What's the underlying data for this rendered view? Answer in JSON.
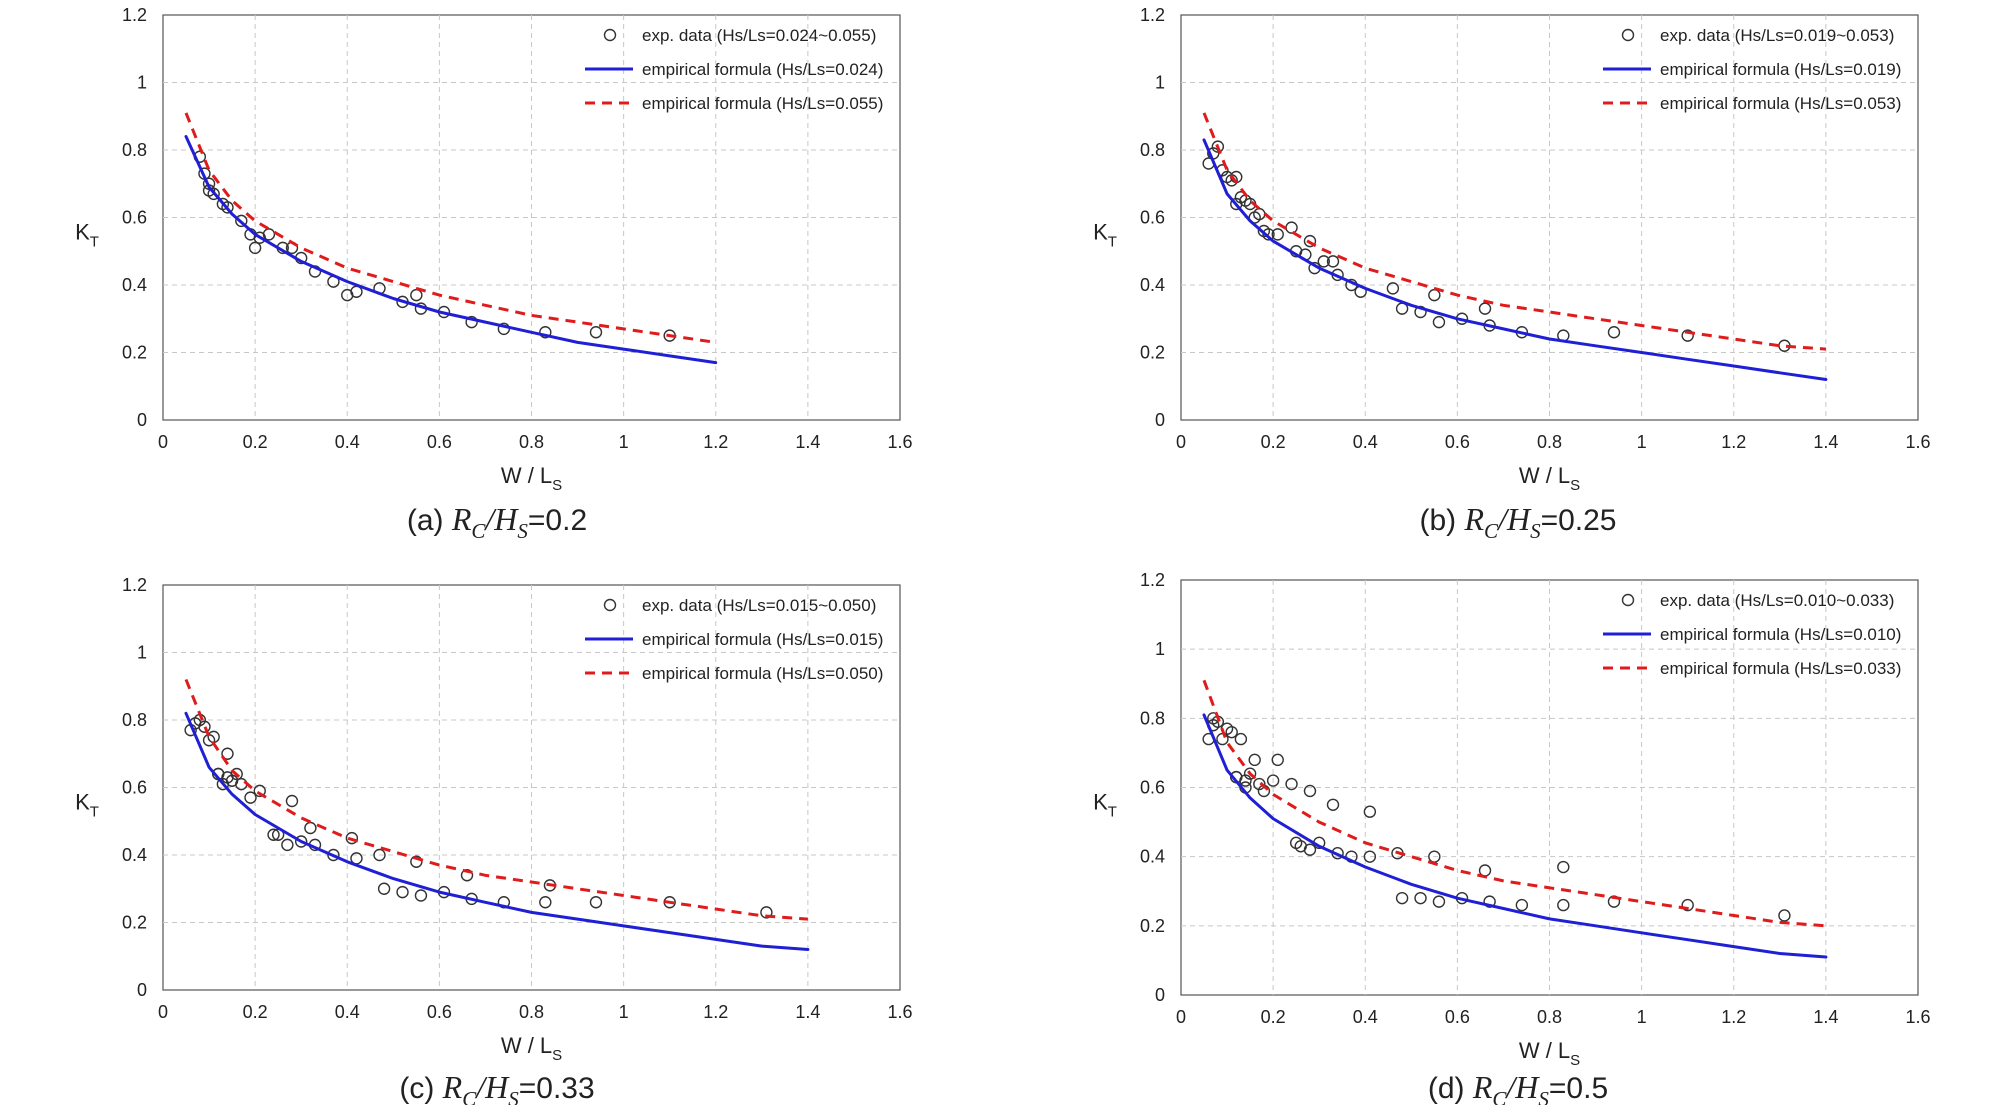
{
  "colors": {
    "exp": "#333333",
    "lower": "#1f1fd6",
    "upper": "#e01b1b",
    "grid": "#c8c8c8",
    "axis": "#555555"
  },
  "chart_data": [
    {
      "type": "line",
      "caption": {
        "prefix": "(a)",
        "var1": "R",
        "var1_sub": "C",
        "sep": "/",
        "var2": "H",
        "var2_sub": "S",
        "value": "=0.2"
      },
      "xlabel": "W / L",
      "xlabel_sub": "S",
      "ylabel": "K",
      "ylabel_sub": "T",
      "xlim": [
        0,
        1.6
      ],
      "ylim": [
        0,
        1.2
      ],
      "xticks": [
        "0",
        "0.2",
        "0.4",
        "0.6",
        "0.8",
        "1",
        "1.2",
        "1.4",
        "1.6"
      ],
      "yticks": [
        "0",
        "0.2",
        "0.4",
        "0.6",
        "0.8",
        "1",
        "1.2"
      ],
      "grid": true,
      "legend_position": "top-right",
      "series": [
        {
          "name": "exp. data (Hs/Ls=0.024~0.055)",
          "kind": "scatter",
          "marker": "open-circle",
          "x": [
            0.08,
            0.09,
            0.1,
            0.1,
            0.11,
            0.13,
            0.14,
            0.17,
            0.19,
            0.2,
            0.21,
            0.23,
            0.26,
            0.28,
            0.3,
            0.33,
            0.37,
            0.4,
            0.42,
            0.47,
            0.52,
            0.55,
            0.56,
            0.61,
            0.67,
            0.74,
            0.83,
            0.94,
            1.1
          ],
          "y": [
            0.78,
            0.73,
            0.7,
            0.68,
            0.67,
            0.64,
            0.63,
            0.59,
            0.55,
            0.51,
            0.54,
            0.55,
            0.51,
            0.51,
            0.48,
            0.44,
            0.41,
            0.37,
            0.38,
            0.39,
            0.35,
            0.37,
            0.33,
            0.32,
            0.29,
            0.27,
            0.26,
            0.26,
            0.25
          ]
        },
        {
          "name": "empirical formula (Hs/Ls=0.024)",
          "kind": "line",
          "style": "solid",
          "x": [
            0.05,
            0.1,
            0.15,
            0.2,
            0.3,
            0.4,
            0.5,
            0.6,
            0.7,
            0.8,
            0.9,
            1.0,
            1.1,
            1.2
          ],
          "y": [
            0.84,
            0.69,
            0.61,
            0.55,
            0.47,
            0.41,
            0.36,
            0.32,
            0.29,
            0.26,
            0.23,
            0.21,
            0.19,
            0.17
          ]
        },
        {
          "name": "empirical formula (Hs/Ls=0.055)",
          "kind": "line",
          "style": "dashed",
          "x": [
            0.05,
            0.1,
            0.15,
            0.2,
            0.3,
            0.4,
            0.5,
            0.6,
            0.7,
            0.8,
            0.9,
            1.0,
            1.1,
            1.2
          ],
          "y": [
            0.91,
            0.74,
            0.65,
            0.59,
            0.51,
            0.45,
            0.41,
            0.37,
            0.34,
            0.31,
            0.29,
            0.27,
            0.25,
            0.23
          ]
        }
      ]
    },
    {
      "type": "line",
      "caption": {
        "prefix": "(b)",
        "var1": "R",
        "var1_sub": "C",
        "sep": "/",
        "var2": "H",
        "var2_sub": "S",
        "value": "=0.25"
      },
      "xlabel": "W / L",
      "xlabel_sub": "S",
      "ylabel": "K",
      "ylabel_sub": "T",
      "xlim": [
        0,
        1.6
      ],
      "ylim": [
        0,
        1.2
      ],
      "xticks": [
        "0",
        "0.2",
        "0.4",
        "0.6",
        "0.8",
        "1",
        "1.2",
        "1.4",
        "1.6"
      ],
      "yticks": [
        "0",
        "0.2",
        "0.4",
        "0.6",
        "0.8",
        "1",
        "1.2"
      ],
      "grid": true,
      "legend_position": "top-right",
      "series": [
        {
          "name": "exp. data (Hs/Ls=0.019~0.053)",
          "kind": "scatter",
          "marker": "open-circle",
          "x": [
            0.06,
            0.07,
            0.08,
            0.09,
            0.1,
            0.11,
            0.12,
            0.12,
            0.13,
            0.14,
            0.15,
            0.16,
            0.17,
            0.18,
            0.19,
            0.21,
            0.24,
            0.25,
            0.27,
            0.28,
            0.29,
            0.31,
            0.33,
            0.34,
            0.37,
            0.39,
            0.46,
            0.48,
            0.52,
            0.55,
            0.56,
            0.61,
            0.66,
            0.67,
            0.74,
            0.83,
            0.94,
            1.1,
            1.31
          ],
          "y": [
            0.76,
            0.79,
            0.81,
            0.74,
            0.72,
            0.71,
            0.72,
            0.64,
            0.66,
            0.65,
            0.64,
            0.6,
            0.61,
            0.56,
            0.55,
            0.55,
            0.57,
            0.5,
            0.49,
            0.53,
            0.45,
            0.47,
            0.47,
            0.43,
            0.4,
            0.38,
            0.39,
            0.33,
            0.32,
            0.37,
            0.29,
            0.3,
            0.33,
            0.28,
            0.26,
            0.25,
            0.26,
            0.25,
            0.22
          ]
        },
        {
          "name": "empirical formula (Hs/Ls=0.019)",
          "kind": "line",
          "style": "solid",
          "x": [
            0.05,
            0.1,
            0.15,
            0.2,
            0.3,
            0.4,
            0.5,
            0.6,
            0.7,
            0.8,
            0.9,
            1.0,
            1.1,
            1.2,
            1.3,
            1.4
          ],
          "y": [
            0.83,
            0.67,
            0.59,
            0.53,
            0.45,
            0.39,
            0.34,
            0.3,
            0.27,
            0.24,
            0.22,
            0.2,
            0.18,
            0.16,
            0.14,
            0.12
          ]
        },
        {
          "name": "empirical formula (Hs/Ls=0.053)",
          "kind": "line",
          "style": "dashed",
          "x": [
            0.05,
            0.1,
            0.15,
            0.2,
            0.3,
            0.4,
            0.5,
            0.6,
            0.7,
            0.8,
            0.9,
            1.0,
            1.1,
            1.2,
            1.3,
            1.4
          ],
          "y": [
            0.91,
            0.74,
            0.65,
            0.59,
            0.51,
            0.45,
            0.41,
            0.37,
            0.34,
            0.32,
            0.3,
            0.28,
            0.26,
            0.24,
            0.22,
            0.21
          ]
        }
      ]
    },
    {
      "type": "line",
      "caption": {
        "prefix": "(c)",
        "var1": "R",
        "var1_sub": "C",
        "sep": "/",
        "var2": "H",
        "var2_sub": "S",
        "value": "=0.33"
      },
      "xlabel": "W / L",
      "xlabel_sub": "S",
      "ylabel": "K",
      "ylabel_sub": "T",
      "xlim": [
        0,
        1.6
      ],
      "ylim": [
        0,
        1.2
      ],
      "xticks": [
        "0",
        "0.2",
        "0.4",
        "0.6",
        "0.8",
        "1",
        "1.2",
        "1.4",
        "1.6"
      ],
      "yticks": [
        "0",
        "0.2",
        "0.4",
        "0.6",
        "0.8",
        "1",
        "1.2"
      ],
      "grid": true,
      "legend_position": "top-right",
      "series": [
        {
          "name": "exp. data (Hs/Ls=0.015~0.050)",
          "kind": "scatter",
          "marker": "open-circle",
          "x": [
            0.06,
            0.07,
            0.08,
            0.09,
            0.1,
            0.11,
            0.12,
            0.12,
            0.13,
            0.14,
            0.14,
            0.15,
            0.16,
            0.17,
            0.19,
            0.21,
            0.24,
            0.25,
            0.27,
            0.28,
            0.3,
            0.32,
            0.33,
            0.37,
            0.41,
            0.42,
            0.47,
            0.48,
            0.52,
            0.55,
            0.56,
            0.61,
            0.66,
            0.67,
            0.74,
            0.83,
            0.84,
            0.94,
            1.1,
            1.31
          ],
          "y": [
            0.77,
            0.79,
            0.8,
            0.78,
            0.74,
            0.75,
            0.64,
            0.64,
            0.61,
            0.63,
            0.7,
            0.62,
            0.64,
            0.61,
            0.57,
            0.59,
            0.46,
            0.46,
            0.43,
            0.56,
            0.44,
            0.48,
            0.43,
            0.4,
            0.45,
            0.39,
            0.4,
            0.3,
            0.29,
            0.38,
            0.28,
            0.29,
            0.34,
            0.27,
            0.26,
            0.26,
            0.31,
            0.26,
            0.26,
            0.23
          ]
        },
        {
          "name": "empirical formula (Hs/Ls=0.015)",
          "kind": "line",
          "style": "solid",
          "x": [
            0.05,
            0.1,
            0.15,
            0.2,
            0.3,
            0.4,
            0.5,
            0.6,
            0.7,
            0.8,
            0.9,
            1.0,
            1.1,
            1.2,
            1.3,
            1.4
          ],
          "y": [
            0.82,
            0.66,
            0.58,
            0.52,
            0.44,
            0.38,
            0.33,
            0.29,
            0.26,
            0.23,
            0.21,
            0.19,
            0.17,
            0.15,
            0.13,
            0.12
          ]
        },
        {
          "name": "empirical formula (Hs/Ls=0.050)",
          "kind": "line",
          "style": "dashed",
          "x": [
            0.05,
            0.1,
            0.15,
            0.2,
            0.3,
            0.4,
            0.5,
            0.6,
            0.7,
            0.8,
            0.9,
            1.0,
            1.1,
            1.2,
            1.3,
            1.4
          ],
          "y": [
            0.92,
            0.75,
            0.65,
            0.59,
            0.51,
            0.45,
            0.41,
            0.37,
            0.34,
            0.32,
            0.3,
            0.28,
            0.26,
            0.24,
            0.22,
            0.21
          ]
        }
      ]
    },
    {
      "type": "line",
      "caption": {
        "prefix": "(d)",
        "var1": "R",
        "var1_sub": "C",
        "sep": "/",
        "var2": "H",
        "var2_sub": "S",
        "value": "=0.5"
      },
      "xlabel": "W / L",
      "xlabel_sub": "S",
      "ylabel": "K",
      "ylabel_sub": "T",
      "xlim": [
        0,
        1.6
      ],
      "ylim": [
        0,
        1.2
      ],
      "xticks": [
        "0",
        "0.2",
        "0.4",
        "0.6",
        "0.8",
        "1",
        "1.2",
        "1.4",
        "1.6"
      ],
      "yticks": [
        "0",
        "0.2",
        "0.4",
        "0.6",
        "0.8",
        "1",
        "1.2"
      ],
      "grid": true,
      "legend_position": "top-right",
      "series": [
        {
          "name": "exp. data (Hs/Ls=0.010~0.033)",
          "kind": "scatter",
          "marker": "open-circle",
          "x": [
            0.06,
            0.07,
            0.07,
            0.08,
            0.09,
            0.1,
            0.11,
            0.12,
            0.12,
            0.13,
            0.14,
            0.14,
            0.15,
            0.16,
            0.17,
            0.18,
            0.2,
            0.21,
            0.24,
            0.25,
            0.26,
            0.28,
            0.28,
            0.3,
            0.33,
            0.34,
            0.37,
            0.41,
            0.41,
            0.47,
            0.48,
            0.52,
            0.55,
            0.56,
            0.61,
            0.66,
            0.67,
            0.74,
            0.83,
            0.83,
            0.94,
            1.1,
            1.31
          ],
          "y": [
            0.74,
            0.8,
            0.78,
            0.79,
            0.74,
            0.77,
            0.76,
            0.63,
            0.63,
            0.74,
            0.6,
            0.62,
            0.64,
            0.68,
            0.61,
            0.59,
            0.62,
            0.68,
            0.61,
            0.44,
            0.43,
            0.59,
            0.42,
            0.44,
            0.55,
            0.41,
            0.4,
            0.53,
            0.4,
            0.41,
            0.28,
            0.28,
            0.4,
            0.27,
            0.28,
            0.36,
            0.27,
            0.26,
            0.37,
            0.26,
            0.27,
            0.26,
            0.23
          ]
        },
        {
          "name": "empirical formula (Hs/Ls=0.010)",
          "kind": "line",
          "style": "solid",
          "x": [
            0.05,
            0.1,
            0.15,
            0.2,
            0.3,
            0.4,
            0.5,
            0.6,
            0.7,
            0.8,
            0.9,
            1.0,
            1.1,
            1.2,
            1.3,
            1.4
          ],
          "y": [
            0.81,
            0.65,
            0.57,
            0.51,
            0.43,
            0.37,
            0.32,
            0.28,
            0.25,
            0.22,
            0.2,
            0.18,
            0.16,
            0.14,
            0.12,
            0.11
          ]
        },
        {
          "name": "empirical formula (Hs/Ls=0.033)",
          "kind": "line",
          "style": "dashed",
          "x": [
            0.05,
            0.1,
            0.15,
            0.2,
            0.3,
            0.4,
            0.5,
            0.6,
            0.7,
            0.8,
            0.9,
            1.0,
            1.1,
            1.2,
            1.3,
            1.4
          ],
          "y": [
            0.91,
            0.73,
            0.64,
            0.58,
            0.5,
            0.44,
            0.4,
            0.36,
            0.33,
            0.31,
            0.29,
            0.27,
            0.25,
            0.23,
            0.21,
            0.2
          ]
        }
      ]
    }
  ]
}
